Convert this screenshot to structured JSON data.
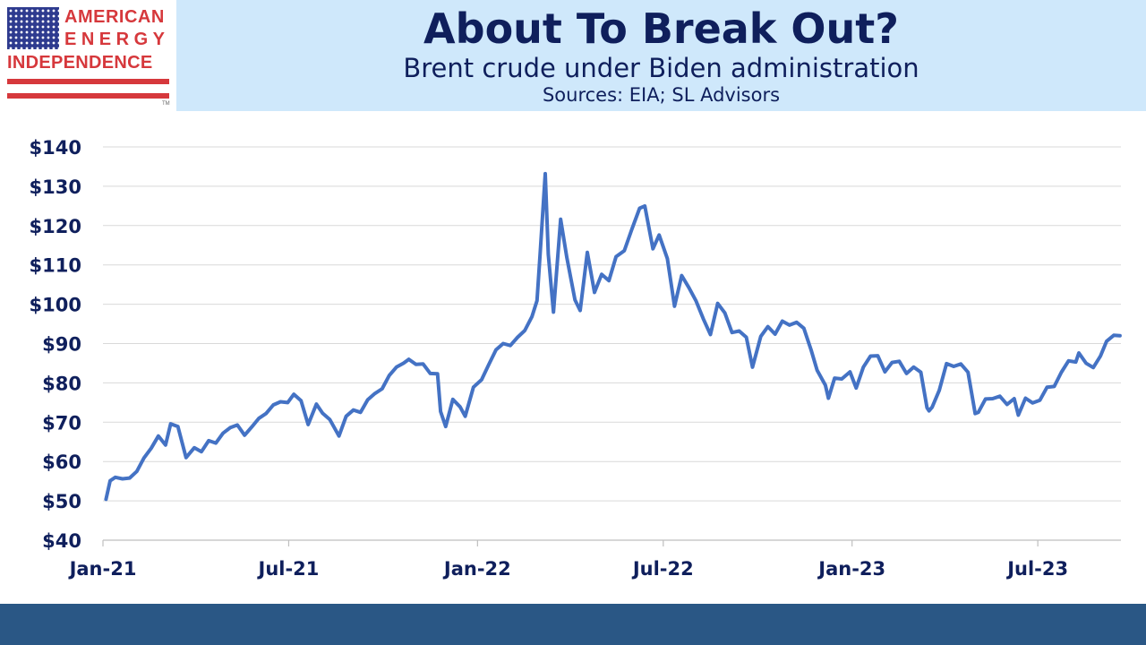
{
  "logo": {
    "line1": "AMERICAN",
    "line2": "ENERGY",
    "line3": "INDEPENDENCE",
    "tm": "TM",
    "flag_icon": "us-flag-stars-icon",
    "colors": {
      "red": "#d6383c",
      "navy": "#2e3b8f"
    }
  },
  "header": {
    "title": "About To Break Out?",
    "subtitle": "Brent crude under Biden administration",
    "source": "Sources: EIA; SL Advisors",
    "band_color": "#cfe8fb",
    "text_color": "#0f1f5c"
  },
  "footer": {
    "color": "#2a5785"
  },
  "chart_data": {
    "type": "line",
    "title": "About To Break Out?",
    "subtitle": "Brent crude under Biden administration",
    "xlabel": "",
    "ylabel": "",
    "ylim": [
      40,
      140
    ],
    "y_ticks": [
      40,
      50,
      60,
      70,
      80,
      90,
      100,
      110,
      120,
      130,
      140
    ],
    "y_tick_labels": [
      "$40",
      "$50",
      "$60",
      "$70",
      "$80",
      "$90",
      "$100",
      "$110",
      "$120",
      "$130",
      "$140"
    ],
    "x_range": [
      "2021-01-01",
      "2023-09-20"
    ],
    "x_ticks": [
      {
        "date": "2021-01-01",
        "label": "Jan-21"
      },
      {
        "date": "2021-07-01",
        "label": "Jul-21"
      },
      {
        "date": "2022-01-01",
        "label": "Jan-22"
      },
      {
        "date": "2022-07-01",
        "label": "Jul-22"
      },
      {
        "date": "2023-01-01",
        "label": "Jan-23"
      },
      {
        "date": "2023-07-01",
        "label": "Jul-23"
      }
    ],
    "grid": true,
    "line_color": "#4472c4",
    "series": [
      {
        "name": "",
        "points": [
          [
            "2021-01-04",
            50.4
          ],
          [
            "2021-01-08",
            55.1
          ],
          [
            "2021-01-13",
            56.0
          ],
          [
            "2021-01-20",
            55.6
          ],
          [
            "2021-01-27",
            55.8
          ],
          [
            "2021-02-03",
            57.5
          ],
          [
            "2021-02-10",
            60.9
          ],
          [
            "2021-02-17",
            63.4
          ],
          [
            "2021-02-24",
            66.5
          ],
          [
            "2021-03-03",
            64.2
          ],
          [
            "2021-03-08",
            69.6
          ],
          [
            "2021-03-15",
            68.9
          ],
          [
            "2021-03-23",
            61.0
          ],
          [
            "2021-03-31",
            63.5
          ],
          [
            "2021-04-07",
            62.5
          ],
          [
            "2021-04-14",
            65.3
          ],
          [
            "2021-04-21",
            64.7
          ],
          [
            "2021-04-28",
            67.2
          ],
          [
            "2021-05-05",
            68.6
          ],
          [
            "2021-05-12",
            69.3
          ],
          [
            "2021-05-19",
            66.7
          ],
          [
            "2021-05-26",
            68.8
          ],
          [
            "2021-06-02",
            71.0
          ],
          [
            "2021-06-09",
            72.2
          ],
          [
            "2021-06-16",
            74.4
          ],
          [
            "2021-06-23",
            75.2
          ],
          [
            "2021-06-30",
            75.0
          ],
          [
            "2021-07-06",
            77.1
          ],
          [
            "2021-07-13",
            75.5
          ],
          [
            "2021-07-20",
            69.4
          ],
          [
            "2021-07-28",
            74.6
          ],
          [
            "2021-08-03",
            72.3
          ],
          [
            "2021-08-10",
            70.7
          ],
          [
            "2021-08-19",
            66.5
          ],
          [
            "2021-08-26",
            71.5
          ],
          [
            "2021-09-02",
            73.1
          ],
          [
            "2021-09-09",
            72.5
          ],
          [
            "2021-09-16",
            75.7
          ],
          [
            "2021-09-23",
            77.3
          ],
          [
            "2021-09-30",
            78.5
          ],
          [
            "2021-10-07",
            81.9
          ],
          [
            "2021-10-14",
            84.0
          ],
          [
            "2021-10-21",
            85.0
          ],
          [
            "2021-10-26",
            86.0
          ],
          [
            "2021-11-02",
            84.7
          ],
          [
            "2021-11-09",
            84.8
          ],
          [
            "2021-11-16",
            82.4
          ],
          [
            "2021-11-23",
            82.3
          ],
          [
            "2021-11-26",
            72.7
          ],
          [
            "2021-12-01",
            68.9
          ],
          [
            "2021-12-08",
            75.8
          ],
          [
            "2021-12-15",
            73.9
          ],
          [
            "2021-12-20",
            71.5
          ],
          [
            "2021-12-28",
            78.9
          ],
          [
            "2022-01-05",
            80.8
          ],
          [
            "2022-01-12",
            84.7
          ],
          [
            "2022-01-19",
            88.4
          ],
          [
            "2022-01-26",
            90.0
          ],
          [
            "2022-02-02",
            89.5
          ],
          [
            "2022-02-09",
            91.6
          ],
          [
            "2022-02-16",
            93.3
          ],
          [
            "2022-02-23",
            96.8
          ],
          [
            "2022-02-28",
            100.9
          ],
          [
            "2022-03-03",
            112.9
          ],
          [
            "2022-03-08",
            133.2
          ],
          [
            "2022-03-11",
            112.7
          ],
          [
            "2022-03-16",
            98.0
          ],
          [
            "2022-03-23",
            121.6
          ],
          [
            "2022-03-29",
            111.9
          ],
          [
            "2022-04-06",
            101.1
          ],
          [
            "2022-04-11",
            98.4
          ],
          [
            "2022-04-18",
            113.2
          ],
          [
            "2022-04-25",
            103.0
          ],
          [
            "2022-05-02",
            107.6
          ],
          [
            "2022-05-09",
            106.0
          ],
          [
            "2022-05-16",
            112.1
          ],
          [
            "2022-05-24",
            113.6
          ],
          [
            "2022-05-31",
            118.8
          ],
          [
            "2022-06-08",
            124.4
          ],
          [
            "2022-06-13",
            125.0
          ],
          [
            "2022-06-21",
            114.1
          ],
          [
            "2022-06-27",
            117.6
          ],
          [
            "2022-07-05",
            111.6
          ],
          [
            "2022-07-12",
            99.5
          ],
          [
            "2022-07-19",
            107.3
          ],
          [
            "2022-07-26",
            104.2
          ],
          [
            "2022-08-02",
            100.8
          ],
          [
            "2022-08-09",
            96.3
          ],
          [
            "2022-08-16",
            92.3
          ],
          [
            "2022-08-23",
            100.2
          ],
          [
            "2022-08-30",
            97.8
          ],
          [
            "2022-09-06",
            92.8
          ],
          [
            "2022-09-13",
            93.2
          ],
          [
            "2022-09-20",
            91.6
          ],
          [
            "2022-09-26",
            84.0
          ],
          [
            "2022-10-04",
            91.8
          ],
          [
            "2022-10-11",
            94.3
          ],
          [
            "2022-10-18",
            92.4
          ],
          [
            "2022-10-25",
            95.7
          ],
          [
            "2022-11-01",
            94.7
          ],
          [
            "2022-11-08",
            95.4
          ],
          [
            "2022-11-15",
            93.9
          ],
          [
            "2022-11-22",
            88.4
          ],
          [
            "2022-11-28",
            83.2
          ],
          [
            "2022-12-06",
            79.4
          ],
          [
            "2022-12-09",
            76.1
          ],
          [
            "2022-12-15",
            81.2
          ],
          [
            "2022-12-22",
            81.0
          ],
          [
            "2022-12-30",
            82.8
          ],
          [
            "2023-01-05",
            78.7
          ],
          [
            "2023-01-12",
            84.0
          ],
          [
            "2023-01-19",
            86.8
          ],
          [
            "2023-01-26",
            86.9
          ],
          [
            "2023-02-02",
            82.8
          ],
          [
            "2023-02-09",
            85.2
          ],
          [
            "2023-02-16",
            85.5
          ],
          [
            "2023-02-23",
            82.4
          ],
          [
            "2023-03-02",
            84.0
          ],
          [
            "2023-03-09",
            82.7
          ],
          [
            "2023-03-15",
            73.7
          ],
          [
            "2023-03-17",
            72.9
          ],
          [
            "2023-03-20",
            73.8
          ],
          [
            "2023-03-27",
            78.1
          ],
          [
            "2023-04-03",
            84.9
          ],
          [
            "2023-04-10",
            84.2
          ],
          [
            "2023-04-17",
            84.8
          ],
          [
            "2023-04-24",
            82.7
          ],
          [
            "2023-05-01",
            72.2
          ],
          [
            "2023-05-04",
            72.5
          ],
          [
            "2023-05-11",
            75.9
          ],
          [
            "2023-05-18",
            76.0
          ],
          [
            "2023-05-25",
            76.6
          ],
          [
            "2023-06-01",
            74.5
          ],
          [
            "2023-06-08",
            76.0
          ],
          [
            "2023-06-12",
            71.8
          ],
          [
            "2023-06-19",
            76.1
          ],
          [
            "2023-06-26",
            74.9
          ],
          [
            "2023-07-03",
            75.6
          ],
          [
            "2023-07-10",
            78.9
          ],
          [
            "2023-07-17",
            79.1
          ],
          [
            "2023-07-24",
            82.7
          ],
          [
            "2023-07-31",
            85.6
          ],
          [
            "2023-08-07",
            85.3
          ],
          [
            "2023-08-10",
            87.6
          ],
          [
            "2023-08-17",
            85.0
          ],
          [
            "2023-08-24",
            83.9
          ],
          [
            "2023-08-31",
            86.8
          ],
          [
            "2023-09-06",
            90.6
          ],
          [
            "2023-09-13",
            92.1
          ],
          [
            "2023-09-19",
            92.0
          ]
        ]
      }
    ]
  }
}
